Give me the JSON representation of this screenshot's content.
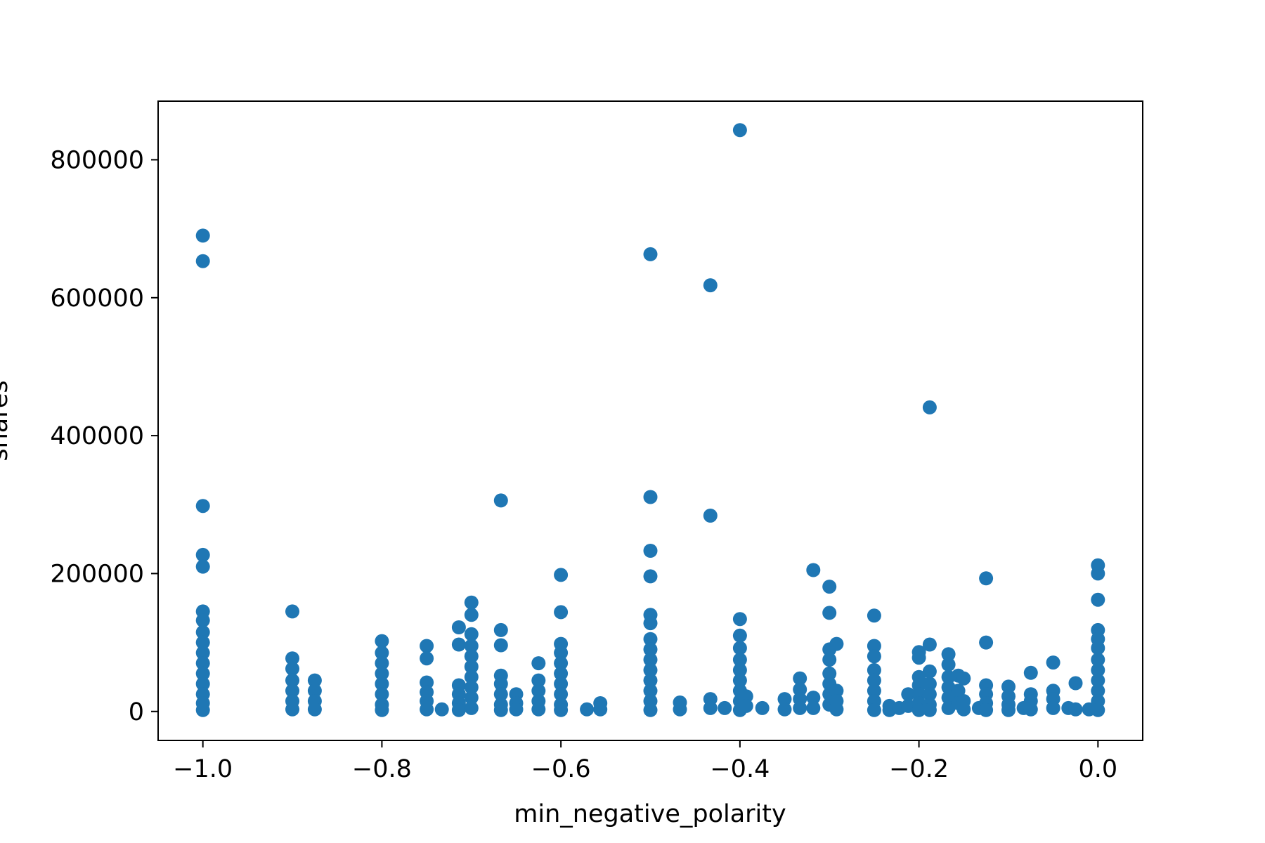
{
  "chart_data": {
    "type": "scatter",
    "title": "",
    "xlabel": "min_negative_polarity",
    "ylabel": "shares",
    "xlim": [
      -1.05,
      0.05
    ],
    "ylim": [
      -42000,
      885000
    ],
    "x_ticks": [
      -1.0,
      -0.8,
      -0.6,
      -0.4,
      -0.2,
      0.0
    ],
    "x_tick_labels": [
      "−1.0",
      "−0.8",
      "−0.6",
      "−0.4",
      "−0.2",
      "0.0"
    ],
    "y_ticks": [
      0,
      200000,
      400000,
      600000,
      800000
    ],
    "y_tick_labels": [
      "0",
      "200000",
      "400000",
      "600000",
      "800000"
    ],
    "grid": false,
    "legend": "none",
    "point_color": "#1f77b4",
    "series": [
      {
        "points": [
          [
            -1.0,
            690000
          ],
          [
            -1.0,
            653000
          ],
          [
            -1.0,
            298000
          ],
          [
            -1.0,
            227000
          ],
          [
            -1.0,
            210000
          ],
          [
            -1.0,
            145000
          ],
          [
            -1.0,
            132000
          ],
          [
            -1.0,
            115000
          ],
          [
            -1.0,
            100000
          ],
          [
            -1.0,
            85000
          ],
          [
            -1.0,
            70000
          ],
          [
            -1.0,
            55000
          ],
          [
            -1.0,
            40000
          ],
          [
            -1.0,
            25000
          ],
          [
            -1.0,
            12000
          ],
          [
            -1.0,
            2000
          ],
          [
            -0.9,
            145000
          ],
          [
            -0.9,
            77000
          ],
          [
            -0.9,
            62000
          ],
          [
            -0.9,
            45000
          ],
          [
            -0.9,
            30000
          ],
          [
            -0.9,
            15000
          ],
          [
            -0.9,
            3000
          ],
          [
            -0.875,
            45000
          ],
          [
            -0.875,
            30000
          ],
          [
            -0.875,
            15000
          ],
          [
            -0.875,
            3000
          ],
          [
            -0.8,
            102000
          ],
          [
            -0.8,
            85000
          ],
          [
            -0.8,
            70000
          ],
          [
            -0.8,
            55000
          ],
          [
            -0.8,
            40000
          ],
          [
            -0.8,
            25000
          ],
          [
            -0.8,
            10000
          ],
          [
            -0.8,
            2000
          ],
          [
            -0.75,
            95000
          ],
          [
            -0.75,
            77000
          ],
          [
            -0.75,
            42000
          ],
          [
            -0.75,
            28000
          ],
          [
            -0.75,
            15000
          ],
          [
            -0.75,
            3000
          ],
          [
            -0.733,
            3000
          ],
          [
            -0.714,
            122000
          ],
          [
            -0.714,
            97000
          ],
          [
            -0.714,
            38000
          ],
          [
            -0.714,
            25000
          ],
          [
            -0.714,
            12000
          ],
          [
            -0.714,
            2000
          ],
          [
            -0.7,
            158000
          ],
          [
            -0.7,
            140000
          ],
          [
            -0.7,
            112000
          ],
          [
            -0.7,
            95000
          ],
          [
            -0.7,
            80000
          ],
          [
            -0.7,
            65000
          ],
          [
            -0.7,
            50000
          ],
          [
            -0.7,
            35000
          ],
          [
            -0.7,
            20000
          ],
          [
            -0.7,
            5000
          ],
          [
            -0.667,
            306000
          ],
          [
            -0.667,
            118000
          ],
          [
            -0.667,
            96000
          ],
          [
            -0.667,
            52000
          ],
          [
            -0.667,
            40000
          ],
          [
            -0.667,
            25000
          ],
          [
            -0.667,
            10000
          ],
          [
            -0.667,
            2000
          ],
          [
            -0.65,
            25000
          ],
          [
            -0.65,
            12000
          ],
          [
            -0.65,
            3000
          ],
          [
            -0.625,
            70000
          ],
          [
            -0.625,
            45000
          ],
          [
            -0.625,
            30000
          ],
          [
            -0.625,
            15000
          ],
          [
            -0.625,
            3000
          ],
          [
            -0.6,
            198000
          ],
          [
            -0.6,
            144000
          ],
          [
            -0.6,
            98000
          ],
          [
            -0.6,
            85000
          ],
          [
            -0.6,
            70000
          ],
          [
            -0.6,
            55000
          ],
          [
            -0.6,
            40000
          ],
          [
            -0.6,
            25000
          ],
          [
            -0.6,
            10000
          ],
          [
            -0.6,
            2000
          ],
          [
            -0.571,
            3000
          ],
          [
            -0.556,
            12000
          ],
          [
            -0.556,
            3000
          ],
          [
            -0.5,
            663000
          ],
          [
            -0.5,
            311000
          ],
          [
            -0.5,
            233000
          ],
          [
            -0.5,
            196000
          ],
          [
            -0.5,
            140000
          ],
          [
            -0.5,
            128000
          ],
          [
            -0.5,
            105000
          ],
          [
            -0.5,
            90000
          ],
          [
            -0.5,
            75000
          ],
          [
            -0.5,
            60000
          ],
          [
            -0.5,
            45000
          ],
          [
            -0.5,
            30000
          ],
          [
            -0.5,
            15000
          ],
          [
            -0.5,
            2000
          ],
          [
            -0.467,
            13000
          ],
          [
            -0.467,
            3000
          ],
          [
            -0.433,
            618000
          ],
          [
            -0.433,
            284000
          ],
          [
            -0.433,
            18000
          ],
          [
            -0.433,
            5000
          ],
          [
            -0.417,
            5000
          ],
          [
            -0.4,
            843000
          ],
          [
            -0.4,
            134000
          ],
          [
            -0.4,
            110000
          ],
          [
            -0.4,
            92000
          ],
          [
            -0.4,
            75000
          ],
          [
            -0.4,
            60000
          ],
          [
            -0.4,
            45000
          ],
          [
            -0.4,
            30000
          ],
          [
            -0.4,
            15000
          ],
          [
            -0.4,
            2000
          ],
          [
            -0.393,
            22000
          ],
          [
            -0.393,
            8000
          ],
          [
            -0.375,
            5000
          ],
          [
            -0.35,
            18000
          ],
          [
            -0.35,
            3000
          ],
          [
            -0.333,
            48000
          ],
          [
            -0.333,
            32000
          ],
          [
            -0.333,
            18000
          ],
          [
            -0.333,
            5000
          ],
          [
            -0.318,
            205000
          ],
          [
            -0.318,
            20000
          ],
          [
            -0.318,
            5000
          ],
          [
            -0.3,
            181000
          ],
          [
            -0.3,
            143000
          ],
          [
            -0.3,
            90000
          ],
          [
            -0.3,
            75000
          ],
          [
            -0.3,
            55000
          ],
          [
            -0.3,
            40000
          ],
          [
            -0.3,
            25000
          ],
          [
            -0.3,
            10000
          ],
          [
            -0.292,
            98000
          ],
          [
            -0.292,
            30000
          ],
          [
            -0.292,
            15000
          ],
          [
            -0.292,
            3000
          ],
          [
            -0.25,
            139000
          ],
          [
            -0.25,
            95000
          ],
          [
            -0.25,
            80000
          ],
          [
            -0.25,
            60000
          ],
          [
            -0.25,
            45000
          ],
          [
            -0.25,
            30000
          ],
          [
            -0.25,
            15000
          ],
          [
            -0.25,
            2000
          ],
          [
            -0.233,
            8000
          ],
          [
            -0.233,
            2000
          ],
          [
            -0.222,
            5000
          ],
          [
            -0.212,
            25000
          ],
          [
            -0.212,
            8000
          ],
          [
            -0.2,
            86000
          ],
          [
            -0.2,
            78000
          ],
          [
            -0.2,
            50000
          ],
          [
            -0.2,
            38000
          ],
          [
            -0.2,
            25000
          ],
          [
            -0.2,
            12000
          ],
          [
            -0.2,
            2000
          ],
          [
            -0.188,
            441000
          ],
          [
            -0.188,
            97000
          ],
          [
            -0.188,
            58000
          ],
          [
            -0.188,
            40000
          ],
          [
            -0.188,
            25000
          ],
          [
            -0.188,
            10000
          ],
          [
            -0.188,
            2000
          ],
          [
            -0.167,
            83000
          ],
          [
            -0.167,
            68000
          ],
          [
            -0.167,
            50000
          ],
          [
            -0.167,
            35000
          ],
          [
            -0.167,
            20000
          ],
          [
            -0.167,
            5000
          ],
          [
            -0.156,
            52000
          ],
          [
            -0.156,
            30000
          ],
          [
            -0.156,
            12000
          ],
          [
            -0.15,
            48000
          ],
          [
            -0.15,
            15000
          ],
          [
            -0.15,
            3000
          ],
          [
            -0.133,
            5000
          ],
          [
            -0.125,
            193000
          ],
          [
            -0.125,
            100000
          ],
          [
            -0.125,
            38000
          ],
          [
            -0.125,
            25000
          ],
          [
            -0.125,
            12000
          ],
          [
            -0.125,
            2000
          ],
          [
            -0.1,
            36000
          ],
          [
            -0.1,
            22000
          ],
          [
            -0.1,
            10000
          ],
          [
            -0.1,
            2000
          ],
          [
            -0.083,
            5000
          ],
          [
            -0.075,
            56000
          ],
          [
            -0.075,
            25000
          ],
          [
            -0.075,
            15000
          ],
          [
            -0.075,
            3000
          ],
          [
            -0.05,
            71000
          ],
          [
            -0.05,
            30000
          ],
          [
            -0.05,
            18000
          ],
          [
            -0.05,
            5000
          ],
          [
            -0.033,
            5000
          ],
          [
            -0.025,
            41000
          ],
          [
            -0.025,
            3000
          ],
          [
            -0.01,
            3000
          ],
          [
            0.0,
            212000
          ],
          [
            0.0,
            200000
          ],
          [
            0.0,
            162000
          ],
          [
            0.0,
            118000
          ],
          [
            0.0,
            105000
          ],
          [
            0.0,
            92000
          ],
          [
            0.0,
            75000
          ],
          [
            0.0,
            60000
          ],
          [
            0.0,
            45000
          ],
          [
            0.0,
            30000
          ],
          [
            0.0,
            15000
          ],
          [
            0.0,
            2000
          ]
        ]
      }
    ]
  }
}
